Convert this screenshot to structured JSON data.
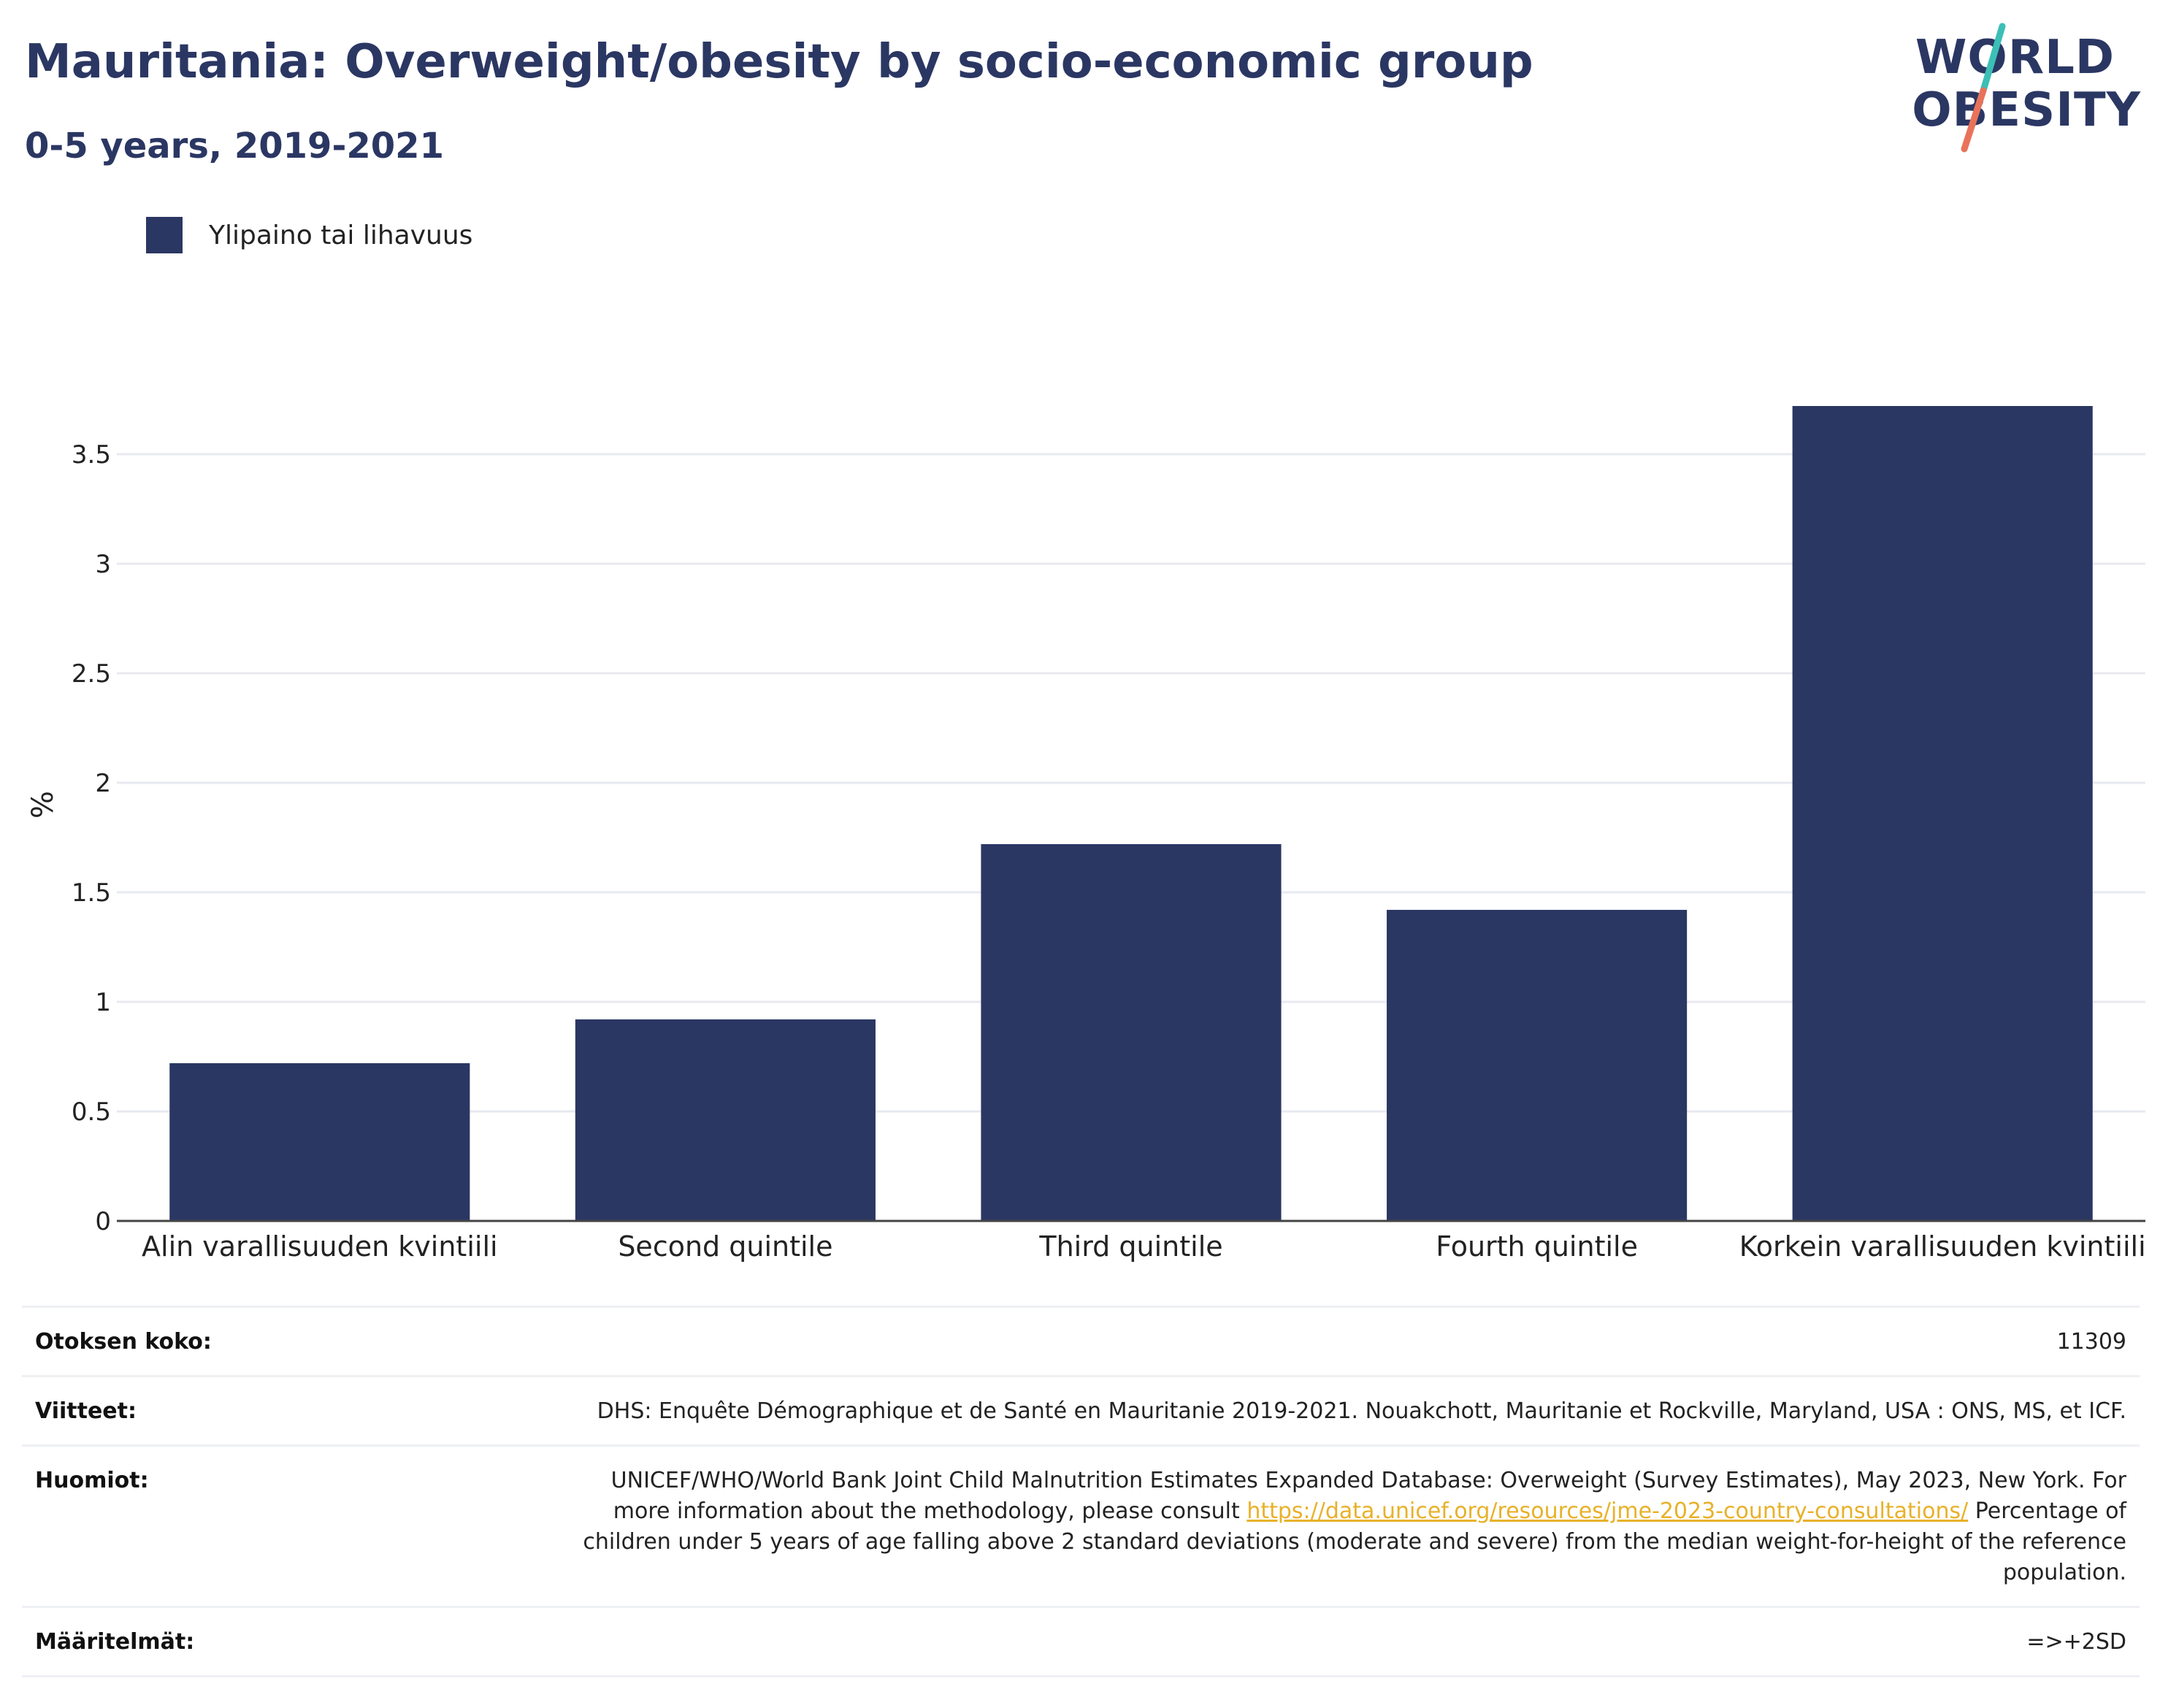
{
  "header": {
    "title": "Mauritania: Overweight/obesity by socio-economic group",
    "subtitle": "0-5 years, 2019-2021"
  },
  "logo": {
    "line1": "WORLD",
    "line2": "OBESITY",
    "slash_colors": [
      "#3bbfb7",
      "#e8735a"
    ]
  },
  "colors": {
    "bar": "#2b3763",
    "gridline": "#e8eaf0",
    "axis": "#444444"
  },
  "chart_data": {
    "type": "bar",
    "title": "Mauritania: Overweight/obesity by socio-economic group",
    "subtitle": "0-5 years, 2019-2021",
    "categories": [
      "Alin varallisuuden kvintiili",
      "Second quintile",
      "Third quintile",
      "Fourth quintile",
      "Korkein varallisuuden kvintiili"
    ],
    "series": [
      {
        "name": "Ylipaino tai lihavuus",
        "values": [
          0.72,
          0.92,
          1.72,
          1.42,
          3.72
        ]
      }
    ],
    "ylabel": "%",
    "xlabel": "",
    "ylim": [
      0,
      3.5
    ],
    "yticks": [
      0,
      0.5,
      1,
      1.5,
      2,
      2.5,
      3,
      3.5
    ],
    "ytick_labels": [
      "0",
      "0.5",
      "1",
      "1.5",
      "2",
      "2.5",
      "3",
      "3.5"
    ],
    "grid": true,
    "legend_position": "top-left"
  },
  "info": {
    "sample_size_label": "Otoksen koko:",
    "sample_size_value": "11309",
    "references_label": "Viitteet:",
    "references_value": "DHS: Enquête Démographique et de Santé en Mauritanie 2019-2021. Nouakchott, Mauritanie et Rockville, Maryland, USA : ONS, MS, et ICF.",
    "notes_label": "Huomiot:",
    "notes_text_before": "UNICEF/WHO/World Bank Joint Child Malnutrition Estimates Expanded Database: Overweight (Survey Estimates), May 2023, New York. For more information about the methodology, please consult ",
    "notes_link": "https://data.unicef.org/resources/jme-2023-country-consultations/",
    "notes_text_after": " Percentage of children under 5 years of age falling above 2 standard deviations (moderate and severe) from the median weight-for-height of the reference population.",
    "definitions_label": "Määritelmät:",
    "definitions_value": "=>+2SD"
  }
}
